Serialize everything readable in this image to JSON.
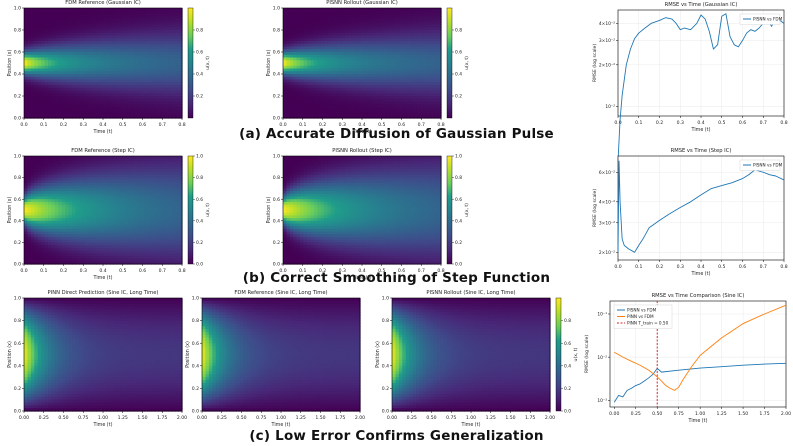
{
  "captions": {
    "a": "(a) Accurate Diffusion of Gaussian Pulse",
    "b": "(b) Correct Smoothing of Step Function",
    "c": "(c) Low Error Confirms Generalization"
  },
  "colors": {
    "viridis": [
      "#440154",
      "#482777",
      "#3f4a8a",
      "#31678e",
      "#26838f",
      "#1f9d8a",
      "#6cce5a",
      "#b6de2b",
      "#fee825"
    ],
    "line_blue": "#1f77b4",
    "line_orange": "#ff7f0e",
    "line_red": "#d62728"
  },
  "chart_data": [
    {
      "id": "a1",
      "type": "heatmap",
      "ic": "gaussian",
      "title": "FDM Reference (Gaussian IC)",
      "xlabel": "Time (t)",
      "ylabel": "Position (x)",
      "cbar_label": "u(x, t)",
      "xlim": [
        0,
        0.8
      ],
      "ylim": [
        0,
        1
      ],
      "xticks": [
        "0.0",
        "0.1",
        "0.2",
        "0.3",
        "0.4",
        "0.5",
        "0.6",
        "0.7",
        "0.8"
      ],
      "yticks": [
        "0.0",
        "0.2",
        "0.4",
        "0.6",
        "0.8",
        "1.0"
      ],
      "cticks": [
        "0.2",
        "0.4",
        "0.6",
        "0.8"
      ],
      "clim": [
        0,
        1
      ]
    },
    {
      "id": "a2",
      "type": "heatmap",
      "ic": "gaussian",
      "title": "PISNN Rollout (Gaussian IC)",
      "xlabel": "Time (t)",
      "ylabel": "Position (x)",
      "cbar_label": "u(x, t)",
      "xlim": [
        0,
        0.8
      ],
      "ylim": [
        0,
        1
      ],
      "xticks": [
        "0.0",
        "0.1",
        "0.2",
        "0.3",
        "0.4",
        "0.5",
        "0.6",
        "0.7",
        "0.8"
      ],
      "yticks": [
        "0.0",
        "0.2",
        "0.4",
        "0.6",
        "0.8",
        "1.0"
      ],
      "cticks": [
        "0.2",
        "0.4",
        "0.6",
        "0.8"
      ],
      "clim": [
        0,
        1
      ]
    },
    {
      "id": "a3",
      "type": "line",
      "title": "RMSE vs Time (Gaussian IC)",
      "xlabel": "Time (t)",
      "ylabel": "RMSE (log scale)",
      "xlim": [
        0,
        0.8
      ],
      "xticks": [
        "0.0",
        "0.1",
        "0.2",
        "0.3",
        "0.4",
        "0.5",
        "0.6",
        "0.7",
        "0.8"
      ],
      "yticks": [
        "4×10⁻²",
        "3×10⁻²",
        "2×10⁻²",
        "10⁻²"
      ],
      "legend": [
        "PISNN vs FDM"
      ],
      "series": [
        {
          "name": "PISNN vs FDM",
          "x": [
            0.0,
            0.01,
            0.02,
            0.04,
            0.06,
            0.08,
            0.1,
            0.13,
            0.16,
            0.2,
            0.23,
            0.26,
            0.28,
            0.3,
            0.32,
            0.35,
            0.38,
            0.4,
            0.42,
            0.44,
            0.46,
            0.48,
            0.5,
            0.52,
            0.54,
            0.56,
            0.58,
            0.6,
            0.62,
            0.64,
            0.66,
            0.68,
            0.7,
            0.72,
            0.74,
            0.76,
            0.78,
            0.8
          ],
          "y": [
            0.004,
            0.008,
            0.012,
            0.02,
            0.026,
            0.031,
            0.034,
            0.037,
            0.04,
            0.042,
            0.044,
            0.043,
            0.04,
            0.036,
            0.037,
            0.036,
            0.04,
            0.046,
            0.043,
            0.035,
            0.026,
            0.028,
            0.045,
            0.047,
            0.032,
            0.028,
            0.027,
            0.03,
            0.034,
            0.036,
            0.035,
            0.037,
            0.04,
            0.043,
            0.038,
            0.044,
            0.042,
            0.04
          ]
        }
      ]
    },
    {
      "id": "b1",
      "type": "heatmap",
      "ic": "step",
      "title": "FDM Reference (Step IC)",
      "xlabel": "Time (t)",
      "ylabel": "Position (x)",
      "cbar_label": "u(x, t)",
      "xlim": [
        0,
        0.8
      ],
      "ylim": [
        0,
        1
      ],
      "xticks": [
        "0.0",
        "0.1",
        "0.2",
        "0.3",
        "0.4",
        "0.5",
        "0.6",
        "0.7",
        "0.8"
      ],
      "yticks": [
        "0.0",
        "0.2",
        "0.4",
        "0.6",
        "0.8",
        "1.0"
      ],
      "cticks": [
        "0.0",
        "0.2",
        "0.4",
        "0.6",
        "0.8",
        "1.0"
      ],
      "clim": [
        0,
        1
      ]
    },
    {
      "id": "b2",
      "type": "heatmap",
      "ic": "step",
      "title": "PISNN Rollout (Step IC)",
      "xlabel": "Time (t)",
      "ylabel": "Position (x)",
      "cbar_label": "u(x, t)",
      "xlim": [
        0,
        0.8
      ],
      "ylim": [
        0,
        1
      ],
      "xticks": [
        "0.0",
        "0.1",
        "0.2",
        "0.3",
        "0.4",
        "0.5",
        "0.6",
        "0.7",
        "0.8"
      ],
      "yticks": [
        "0.0",
        "0.2",
        "0.4",
        "0.6",
        "0.8",
        "1.0"
      ],
      "cticks": [
        "0.0",
        "0.2",
        "0.4",
        "0.6",
        "0.8",
        "1.0"
      ],
      "clim": [
        0,
        1
      ]
    },
    {
      "id": "b3",
      "type": "line",
      "title": "RMSE vs Time (Step IC)",
      "xlabel": "Time (t)",
      "ylabel": "RMSE (log scale)",
      "xlim": [
        0,
        0.8
      ],
      "xticks": [
        "0.0",
        "0.1",
        "0.2",
        "0.3",
        "0.4",
        "0.5",
        "0.6",
        "0.7",
        "0.8"
      ],
      "yticks": [
        "6×10⁻²",
        "4×10⁻²",
        "3×10⁻²",
        "2×10⁻²"
      ],
      "legend": [
        "PISNN vs FDM"
      ],
      "series": [
        {
          "name": "PISNN vs FDM",
          "x": [
            0.0,
            0.005,
            0.01,
            0.02,
            0.03,
            0.05,
            0.08,
            0.1,
            0.12,
            0.15,
            0.2,
            0.25,
            0.3,
            0.35,
            0.4,
            0.45,
            0.5,
            0.55,
            0.6,
            0.63,
            0.66,
            0.7,
            0.73,
            0.76,
            0.8
          ],
          "y": [
            0.02,
            0.07,
            0.04,
            0.024,
            0.022,
            0.021,
            0.02,
            0.022,
            0.024,
            0.028,
            0.031,
            0.034,
            0.037,
            0.04,
            0.044,
            0.048,
            0.05,
            0.052,
            0.055,
            0.058,
            0.062,
            0.06,
            0.058,
            0.057,
            0.054
          ]
        }
      ]
    },
    {
      "id": "c1",
      "type": "heatmap",
      "ic": "sine",
      "title": "PINN Direct Prediction (Sine IC, Long Time)",
      "xlabel": "Time (t)",
      "ylabel": "Position (x)",
      "xlim": [
        0,
        2.0
      ],
      "ylim": [
        0,
        1
      ],
      "xticks": [
        "0.00",
        "0.25",
        "0.50",
        "0.75",
        "1.00",
        "1.25",
        "1.50",
        "1.75",
        "2.00"
      ],
      "yticks": [
        "0.0",
        "0.2",
        "0.4",
        "0.6",
        "0.8",
        "1.0"
      ]
    },
    {
      "id": "c2",
      "type": "heatmap",
      "ic": "sine",
      "title": "FDM Reference (Sine IC, Long Time)",
      "xlabel": "Time (t)",
      "ylabel": "Position (x)",
      "xlim": [
        0,
        2.0
      ],
      "ylim": [
        0,
        1
      ],
      "xticks": [
        "0.00",
        "0.25",
        "0.50",
        "0.75",
        "1.00",
        "1.25",
        "1.50",
        "1.75",
        "2.00"
      ],
      "yticks": [
        "0.0",
        "0.2",
        "0.4",
        "0.6",
        "0.8",
        "1.0"
      ]
    },
    {
      "id": "c3",
      "type": "heatmap",
      "ic": "sine",
      "title": "PISNN Rollout (Sine IC, Long Time)",
      "xlabel": "Time (t)",
      "ylabel": "Position (x)",
      "cbar_label": "u(x, t)",
      "xlim": [
        0,
        2.0
      ],
      "ylim": [
        0,
        1
      ],
      "xticks": [
        "0.00",
        "0.25",
        "0.50",
        "0.75",
        "1.00",
        "1.25",
        "1.50",
        "1.75",
        "2.00"
      ],
      "yticks": [
        "0.0",
        "0.2",
        "0.4",
        "0.6",
        "0.8",
        "1.0"
      ],
      "cticks": [
        "0.0",
        "0.2",
        "0.4",
        "0.6",
        "0.8"
      ],
      "clim": [
        0,
        1
      ]
    },
    {
      "id": "c4",
      "type": "line",
      "title": "RMSE vs Time Comparison (Sine IC)",
      "xlabel": "Time (t)",
      "ylabel": "RMSE (log scale)",
      "xlim": [
        -0.05,
        2.0
      ],
      "xticks": [
        "0.00",
        "0.25",
        "0.50",
        "0.75",
        "1.00",
        "1.25",
        "1.50",
        "1.75",
        "2.00"
      ],
      "yticks": [
        "10⁻¹",
        "10⁻²",
        "10⁻³"
      ],
      "legend": [
        "PISNN vs FDM",
        "PINN vs FDM",
        "PINN T_train = 0.50"
      ],
      "vline": 0.5,
      "series": [
        {
          "name": "PISNN vs FDM",
          "x": [
            0.0,
            0.05,
            0.1,
            0.15,
            0.2,
            0.25,
            0.3,
            0.35,
            0.4,
            0.45,
            0.5,
            0.55,
            0.75,
            1.0,
            1.25,
            1.5,
            1.75,
            2.0
          ],
          "y": [
            0.0009,
            0.0013,
            0.0012,
            0.0017,
            0.0019,
            0.0022,
            0.0024,
            0.0028,
            0.0033,
            0.004,
            0.0055,
            0.0045,
            0.005,
            0.0056,
            0.006,
            0.0065,
            0.0069,
            0.0072
          ]
        },
        {
          "name": "PINN vs FDM",
          "x": [
            0.0,
            0.1,
            0.2,
            0.3,
            0.4,
            0.5,
            0.55,
            0.6,
            0.65,
            0.7,
            0.75,
            0.8,
            0.9,
            1.0,
            1.25,
            1.5,
            1.75,
            2.0
          ],
          "y": [
            0.013,
            0.01,
            0.008,
            0.0065,
            0.005,
            0.0035,
            0.0028,
            0.0022,
            0.0019,
            0.0017,
            0.002,
            0.003,
            0.006,
            0.011,
            0.028,
            0.06,
            0.1,
            0.16
          ]
        }
      ]
    }
  ]
}
